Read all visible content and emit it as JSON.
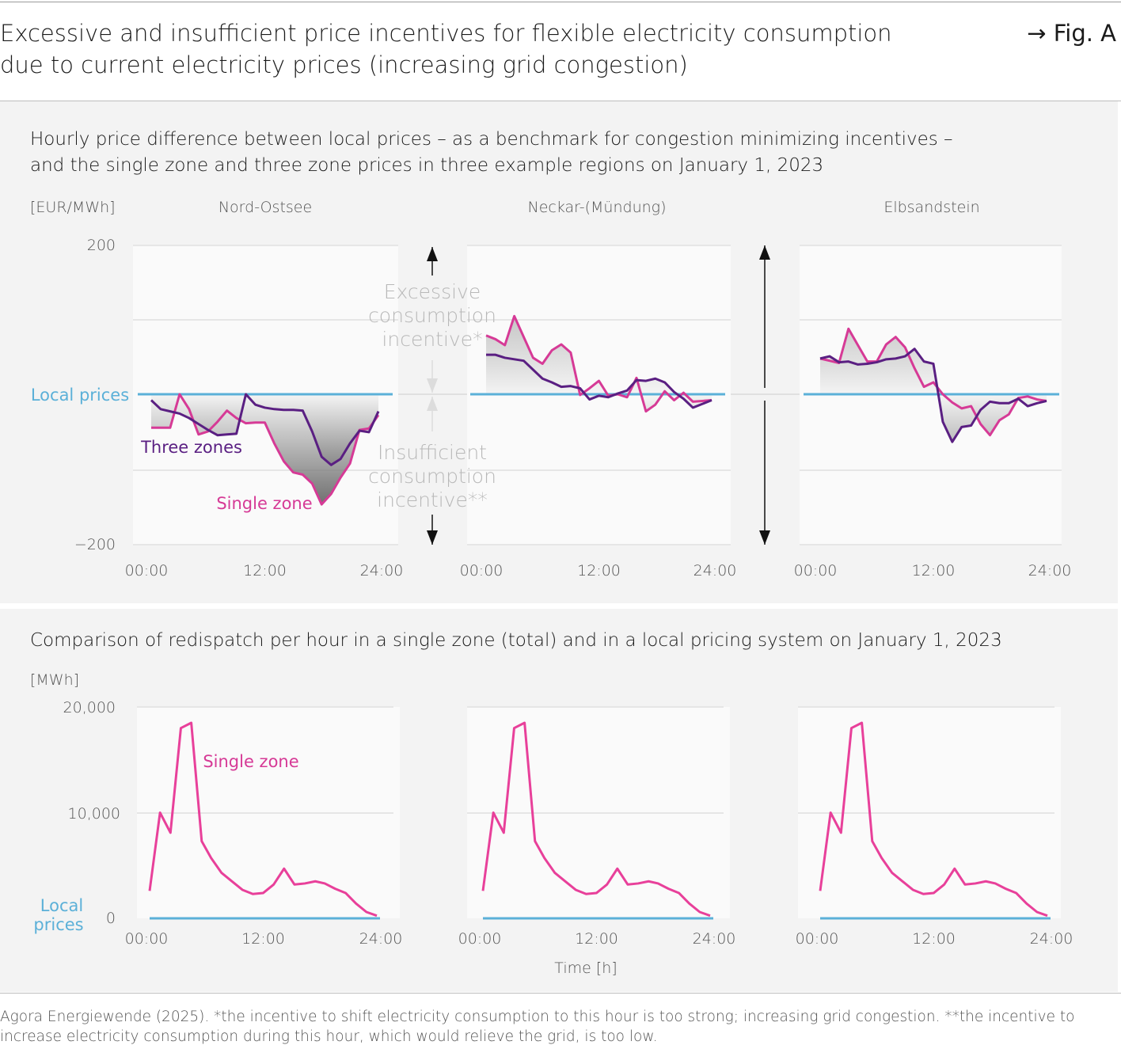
{
  "header": {
    "title_line1": "Excessive and insufficient price incentives for flexible electricity consumption",
    "title_line2": "due to current electricity prices (increasing grid congestion)",
    "fig_label": "→ Fig. A"
  },
  "colors": {
    "single_zone": "#d63a96",
    "three_zones": "#5a1f82",
    "local_prices": "#5bb0d8",
    "annotation": "#b8b8b8",
    "panel_bg": "#f3f3f3",
    "plot_bg": "#fafafa"
  },
  "chart_data": [
    {
      "type": "line",
      "title": "Hourly price difference between local prices – as a benchmark for congestion minimizing incentives – and the single zone and three zone prices in three example regions on January 1, 2023",
      "title_line1": "Hourly price difference between local prices – as a benchmark for congestion minimizing incentives –",
      "title_line2": "and the single zone and three zone prices in three example regions on January 1, 2023",
      "ylabel": "[EUR/MWh]",
      "ylim": [
        -200,
        200
      ],
      "ytick_labels": [
        "200",
        "−200"
      ],
      "xtick_labels": [
        "00:00",
        "12:00",
        "24:00"
      ],
      "x_hours": [
        0,
        1,
        2,
        3,
        4,
        5,
        6,
        7,
        8,
        9,
        10,
        11,
        12,
        13,
        14,
        15,
        16,
        17,
        18,
        19,
        20,
        21,
        22,
        23,
        24
      ],
      "grid": true,
      "labels": {
        "local_prices": "Local prices",
        "three_zones": "Three zones",
        "single_zone": "Single zone"
      },
      "annotations": {
        "excessive": [
          "Excessive",
          "consumption",
          "incentive*"
        ],
        "insufficient": [
          "Insufficient",
          "consumption",
          "incentive**"
        ]
      },
      "panels": [
        {
          "name": "Nord-Ostsee",
          "series": [
            {
              "name": "Single zone",
              "values": [
                -45,
                -45,
                -45,
                0,
                -20,
                -54,
                -50,
                -37,
                -22,
                -32,
                -39,
                -38,
                -38,
                -66,
                -90,
                -105,
                -108,
                -120,
                -148,
                -134,
                -112,
                -93,
                -48,
                -46,
                -28
              ]
            },
            {
              "name": "Three zones",
              "values": [
                -8,
                -20,
                -23,
                -26,
                -32,
                -40,
                -48,
                -55,
                -54,
                -53,
                0,
                -14,
                -18,
                -20,
                -21,
                -21,
                -22,
                -50,
                -84,
                -95,
                -87,
                -66,
                -49,
                -51,
                -23
              ]
            },
            {
              "name": "Local prices",
              "values": [
                0,
                0
              ]
            }
          ]
        },
        {
          "name": "Neckar-(Mündung)",
          "series": [
            {
              "name": "Single zone",
              "values": [
                79,
                74,
                66,
                105,
                77,
                49,
                41,
                59,
                67,
                56,
                -1,
                8,
                18,
                -2,
                0,
                -4,
                22,
                -23,
                -14,
                4,
                -8,
                2,
                -10,
                -9,
                -8
              ]
            },
            {
              "name": "Three zones",
              "values": [
                53,
                53,
                49,
                47,
                45,
                33,
                21,
                16,
                10,
                11,
                8,
                -7,
                -2,
                -4,
                1,
                5,
                19,
                18,
                21,
                16,
                3,
                -6,
                -18,
                -13,
                -8
              ]
            },
            {
              "name": "Local prices",
              "values": [
                0,
                0
              ]
            }
          ]
        },
        {
          "name": "Elbsandstein",
          "series": [
            {
              "name": "Single zone",
              "values": [
                48,
                45,
                42,
                88,
                66,
                44,
                44,
                67,
                77,
                63,
                35,
                10,
                16,
                0,
                -11,
                -19,
                -16,
                -40,
                -55,
                -35,
                -27,
                -5,
                -3,
                -7,
                -9
              ]
            },
            {
              "name": "Three zones",
              "values": [
                48,
                51,
                43,
                44,
                40,
                41,
                43,
                47,
                48,
                51,
                61,
                44,
                41,
                -37,
                -64,
                -44,
                -42,
                -21,
                -10,
                -12,
                -12,
                -6,
                -16,
                -12,
                -9
              ]
            },
            {
              "name": "Local prices",
              "values": [
                0,
                0
              ]
            }
          ]
        }
      ]
    },
    {
      "type": "line",
      "title": "Comparison of redispatch per hour in a single zone (total) and in a local pricing system on January 1, 2023",
      "ylabel": "[MWh]",
      "xlabel": "Time [h]",
      "ylim": [
        0,
        20000
      ],
      "ytick_labels": [
        "20,000",
        "10,000",
        "0"
      ],
      "xtick_labels": [
        "00:00",
        "12:00",
        "24:00"
      ],
      "grid": true,
      "labels": {
        "single_zone": "Single zone",
        "local_prices_line1": "Local",
        "local_prices_line2": "prices"
      },
      "x_hours": [
        0,
        1.1,
        2.2,
        3.3,
        4.4,
        5.5,
        6.5,
        7.6,
        8.7,
        9.8,
        10.9,
        12,
        13.1,
        14.2,
        15.3,
        16.4,
        17.5,
        18.5,
        19.6,
        20.7,
        21.8,
        22.9,
        24
      ],
      "panels": [
        {
          "series": [
            {
              "name": "Single zone",
              "values": [
                2600,
                10000,
                8100,
                18000,
                18500,
                7300,
                5700,
                4300,
                3500,
                2700,
                2300,
                2400,
                3200,
                4700,
                3200,
                3300,
                3500,
                3300,
                2800,
                2400,
                1400,
                600,
                250
              ]
            },
            {
              "name": "Local prices",
              "values": [
                0,
                0
              ]
            }
          ]
        },
        {
          "series": [
            {
              "name": "Single zone",
              "values": [
                2600,
                10000,
                8100,
                18000,
                18500,
                7300,
                5700,
                4300,
                3500,
                2700,
                2300,
                2400,
                3200,
                4700,
                3200,
                3300,
                3500,
                3300,
                2800,
                2400,
                1400,
                600,
                250
              ]
            },
            {
              "name": "Local prices",
              "values": [
                0,
                0
              ]
            }
          ]
        },
        {
          "series": [
            {
              "name": "Single zone",
              "values": [
                2600,
                10000,
                8100,
                18000,
                18500,
                7300,
                5700,
                4300,
                3500,
                2700,
                2300,
                2400,
                3200,
                4700,
                3200,
                3300,
                3500,
                3300,
                2800,
                2400,
                1400,
                600,
                250
              ]
            },
            {
              "name": "Local prices",
              "values": [
                0,
                0
              ]
            }
          ]
        }
      ]
    }
  ],
  "footer": {
    "line1": "Agora Energiewende (2025). *the incentive to shift electricity consumption to this hour is too strong; increasing grid congestion. **the incentive to",
    "line2": "increase electricity consumption during this hour, which would relieve the grid, is too low."
  }
}
